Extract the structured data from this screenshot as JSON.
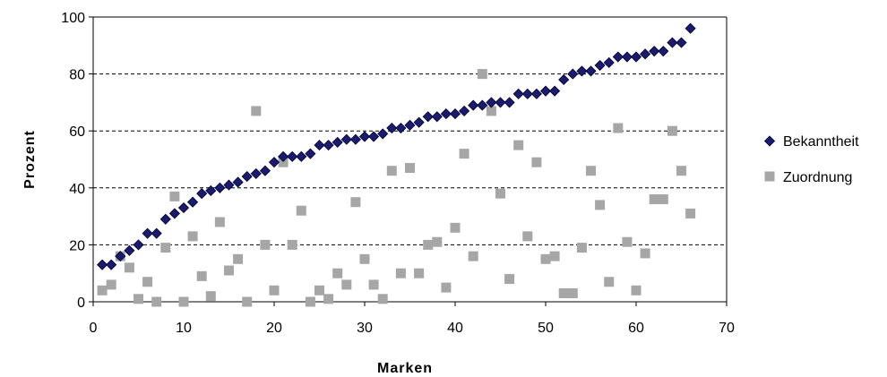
{
  "chart_data": {
    "type": "scatter",
    "title": "",
    "xlabel": "Marken",
    "ylabel": "Prozent",
    "xlim": [
      0,
      70
    ],
    "ylim": [
      0,
      100
    ],
    "xticks": [
      "0",
      "10",
      "20",
      "30",
      "40",
      "50",
      "60",
      "70"
    ],
    "yticks": [
      "0",
      "20",
      "40",
      "60",
      "80",
      "100"
    ],
    "grid": "horizontal dashed",
    "legend_position": "right",
    "series": [
      {
        "name": "Bekanntheit",
        "color": "#1a1a6e",
        "marker": "diamond",
        "x": [
          1,
          2,
          3,
          4,
          5,
          6,
          7,
          8,
          9,
          10,
          11,
          12,
          13,
          14,
          15,
          16,
          17,
          18,
          19,
          20,
          21,
          22,
          23,
          24,
          25,
          26,
          27,
          28,
          29,
          30,
          31,
          32,
          33,
          34,
          35,
          36,
          37,
          38,
          39,
          40,
          41,
          42,
          43,
          44,
          45,
          46,
          47,
          48,
          49,
          50,
          51,
          52,
          53,
          54,
          55,
          56,
          57,
          58,
          59,
          60,
          61,
          62,
          63,
          64,
          65,
          66
        ],
        "y": [
          13,
          13,
          16,
          18,
          20,
          24,
          24,
          29,
          31,
          33,
          35,
          38,
          39,
          40,
          41,
          42,
          44,
          45,
          46,
          49,
          51,
          51,
          51,
          52,
          55,
          55,
          56,
          57,
          57,
          58,
          58,
          59,
          61,
          61,
          62,
          63,
          65,
          65,
          66,
          66,
          67,
          69,
          69,
          70,
          70,
          70,
          73,
          73,
          73,
          74,
          74,
          78,
          80,
          81,
          81,
          83,
          84,
          86,
          86,
          86,
          87,
          88,
          88,
          91,
          91,
          96
        ]
      },
      {
        "name": "Zuordnung",
        "color": "#a6a6a6",
        "marker": "square",
        "x": [
          1,
          2,
          3,
          4,
          5,
          6,
          7,
          8,
          9,
          10,
          11,
          12,
          13,
          14,
          15,
          16,
          17,
          18,
          19,
          20,
          21,
          22,
          23,
          24,
          25,
          26,
          27,
          28,
          29,
          30,
          31,
          32,
          33,
          34,
          35,
          36,
          37,
          38,
          39,
          40,
          41,
          42,
          43,
          44,
          45,
          46,
          47,
          48,
          49,
          50,
          51,
          52,
          53,
          54,
          55,
          56,
          57,
          58,
          59,
          60,
          61,
          62,
          63,
          64,
          65,
          66
        ],
        "y": [
          4,
          6,
          16,
          12,
          1,
          7,
          0,
          19,
          37,
          0,
          23,
          9,
          2,
          28,
          11,
          15,
          0,
          67,
          20,
          4,
          49,
          20,
          32,
          0,
          4,
          1,
          10,
          6,
          35,
          15,
          6,
          1,
          46,
          10,
          47,
          10,
          20,
          21,
          5,
          26,
          52,
          16,
          80,
          67,
          38,
          8,
          55,
          23,
          49,
          15,
          16,
          3,
          3,
          19,
          46,
          34,
          7,
          61,
          21,
          4,
          17,
          36,
          36,
          60,
          46,
          31
        ]
      }
    ]
  }
}
